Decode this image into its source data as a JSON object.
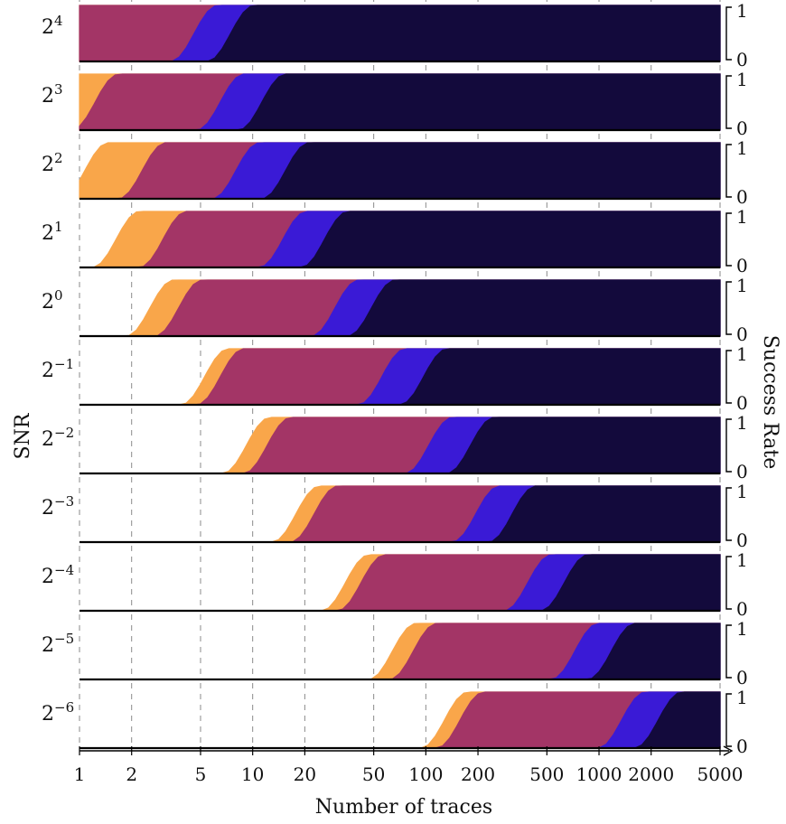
{
  "chart_data": {
    "type": "area",
    "xlabel": "Number of traces",
    "ylabel_left": "SNR",
    "ylabel_right": "Success Rate",
    "x_scale": "log",
    "xlim": [
      1,
      5000
    ],
    "ylim": [
      0,
      1
    ],
    "x_ticks": [
      1,
      2,
      5,
      10,
      20,
      50,
      100,
      200,
      500,
      1000,
      2000,
      5000
    ],
    "x_tick_labels": [
      "1",
      "2",
      "5",
      "10",
      "20",
      "50",
      "100",
      "200",
      "500",
      "1000",
      "2000",
      "5000"
    ],
    "y_ticks": [
      0,
      1
    ],
    "y_tick_labels": [
      "0",
      "1"
    ],
    "grid": "vertical dashed",
    "series_colors": [
      "#f9a64a",
      "#a33566",
      "#3a1ad6",
      "#130a3c"
    ],
    "row_labels": [
      "4",
      "3",
      "2",
      "1",
      "0",
      "−1",
      "−2",
      "−3",
      "−4",
      "−5",
      "−6"
    ],
    "panels": [
      {
        "snr": "2^4",
        "thresholds_log2": [
          -1,
          -1,
          2.2,
          2.9
        ],
        "series_values": [
          1,
          1,
          1,
          1
        ]
      },
      {
        "snr": "2^3",
        "thresholds_log2": [
          -1,
          0.3,
          2.7,
          3.5
        ],
        "series_values": [
          1,
          1,
          1,
          1
        ]
      },
      {
        "snr": "2^2",
        "thresholds_log2": [
          0.1,
          1.2,
          3.0,
          3.95
        ],
        "series_values": [
          1,
          1,
          1,
          1
        ]
      },
      {
        "snr": "2^1",
        "thresholds_log2": [
          0.7,
          1.6,
          3.9,
          4.7
        ],
        "series_values": [
          1,
          1,
          1,
          1
        ]
      },
      {
        "snr": "2^0",
        "thresholds_log2": [
          1.35,
          1.9,
          4.9,
          5.6
        ],
        "series_values": [
          1,
          1,
          1,
          1
        ]
      },
      {
        "snr": "2^-1",
        "thresholds_log2": [
          2.4,
          2.7,
          5.8,
          6.6
        ],
        "series_values": [
          1,
          1,
          1,
          1
        ]
      },
      {
        "snr": "2^-2",
        "thresholds_log2": [
          3.2,
          3.6,
          6.7,
          7.5
        ],
        "series_values": [
          1,
          1,
          1,
          1
        ]
      },
      {
        "snr": "2^-3",
        "thresholds_log2": [
          4.15,
          4.5,
          7.6,
          8.3
        ],
        "series_values": [
          1,
          1,
          1,
          1
        ]
      },
      {
        "snr": "2^-4",
        "thresholds_log2": [
          5.1,
          5.4,
          8.6,
          9.3
        ],
        "series_values": [
          1,
          1,
          1,
          1
        ]
      },
      {
        "snr": "2^-5",
        "thresholds_log2": [
          6.0,
          6.4,
          9.5,
          10.2
        ],
        "series_values": [
          1,
          1,
          1,
          1
        ]
      },
      {
        "snr": "2^-6",
        "thresholds_log2": [
          7.0,
          7.3,
          10.4,
          11.1
        ],
        "series_values": [
          1,
          1,
          1,
          1
        ]
      }
    ]
  }
}
